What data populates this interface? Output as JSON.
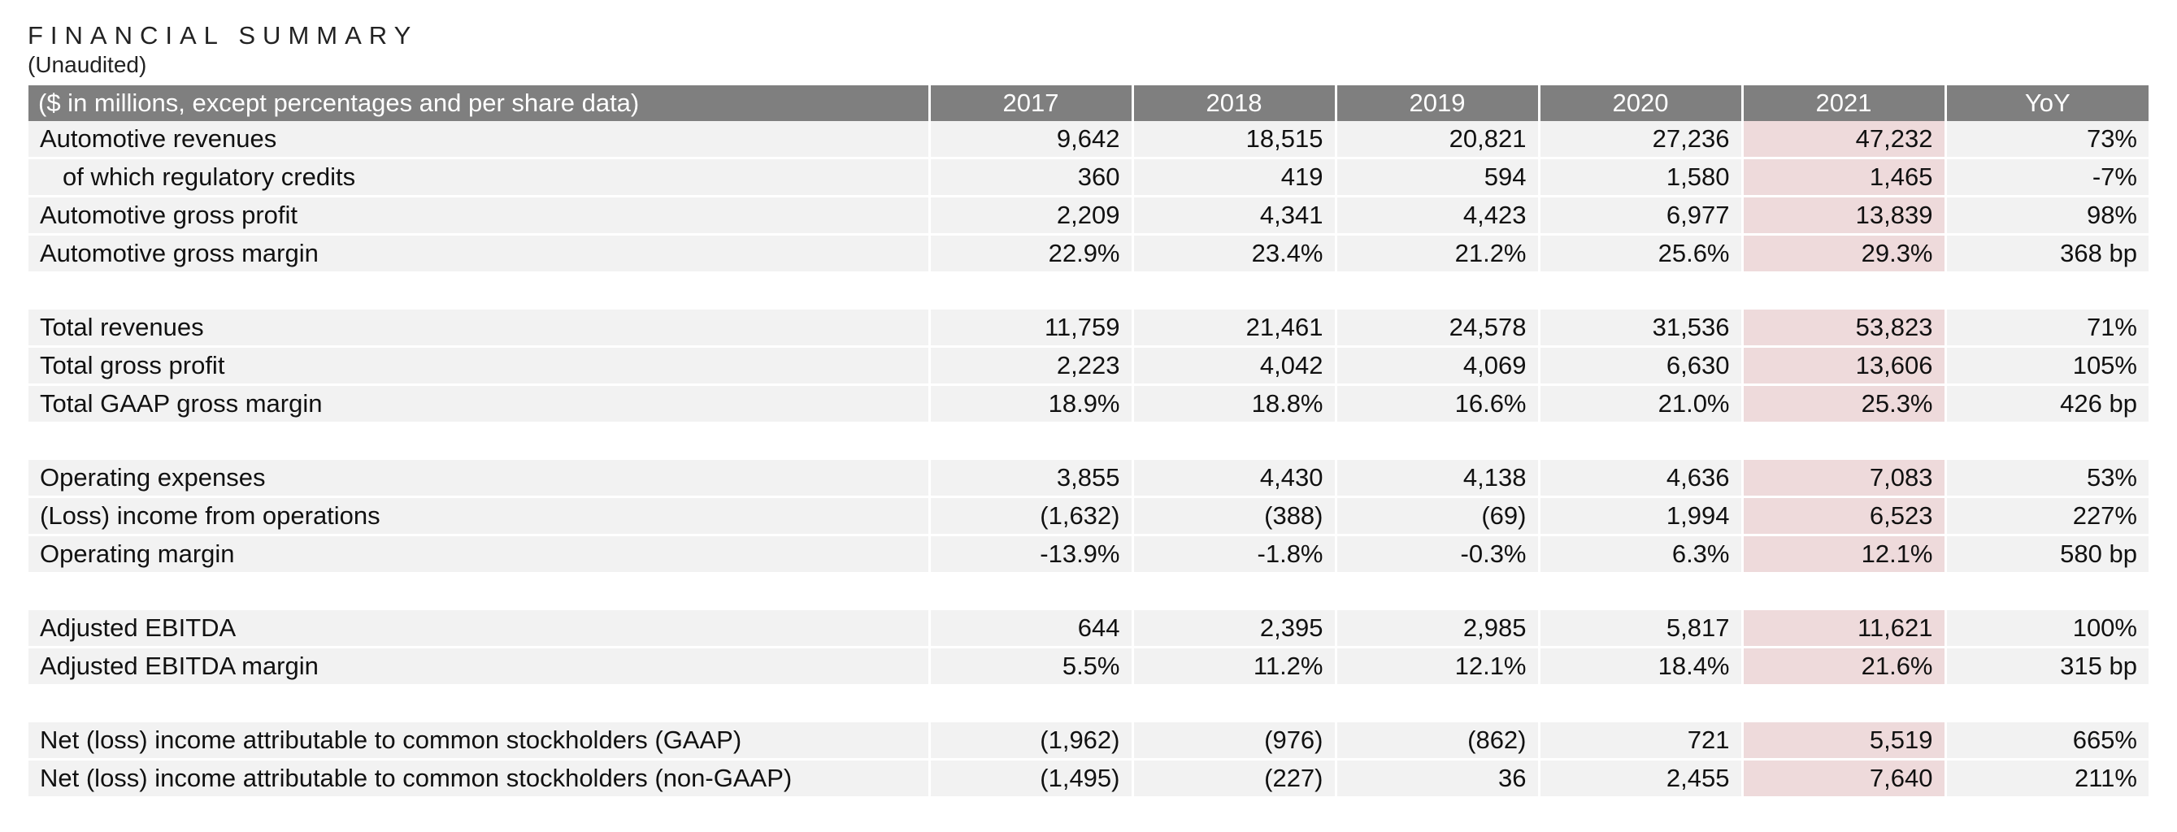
{
  "title": "FINANCIAL SUMMARY",
  "subtitle": "(Unaudited)",
  "table": {
    "headers": [
      "($ in millions, except percentages and per share data)",
      "2017",
      "2018",
      "2019",
      "2020",
      "2021",
      "YoY"
    ],
    "highlight_color": "#eedadb",
    "header_color": "#7f7f7f",
    "groups": [
      [
        {
          "label": "Automotive revenues",
          "values": [
            "9,642",
            "18,515",
            "20,821",
            "27,236",
            "47,232",
            "73%"
          ]
        },
        {
          "label": "of which regulatory credits",
          "indent": true,
          "values": [
            "360",
            "419",
            "594",
            "1,580",
            "1,465",
            "-7%"
          ]
        },
        {
          "label": "Automotive gross profit",
          "values": [
            "2,209",
            "4,341",
            "4,423",
            "6,977",
            "13,839",
            "98%"
          ]
        },
        {
          "label": "Automotive gross margin",
          "values": [
            "22.9%",
            "23.4%",
            "21.2%",
            "25.6%",
            "29.3%",
            "368 bp"
          ]
        }
      ],
      [
        {
          "label": "Total revenues",
          "values": [
            "11,759",
            "21,461",
            "24,578",
            "31,536",
            "53,823",
            "71%"
          ]
        },
        {
          "label": "Total gross profit",
          "values": [
            "2,223",
            "4,042",
            "4,069",
            "6,630",
            "13,606",
            "105%"
          ]
        },
        {
          "label": "Total GAAP gross margin",
          "values": [
            "18.9%",
            "18.8%",
            "16.6%",
            "21.0%",
            "25.3%",
            "426 bp"
          ]
        }
      ],
      [
        {
          "label": "Operating expenses",
          "values": [
            "3,855",
            "4,430",
            "4,138",
            "4,636",
            "7,083",
            "53%"
          ]
        },
        {
          "label": "(Loss) income from operations",
          "values": [
            "(1,632)",
            "(388)",
            "(69)",
            "1,994",
            "6,523",
            "227%"
          ]
        },
        {
          "label": "Operating margin",
          "values": [
            "-13.9%",
            "-1.8%",
            "-0.3%",
            "6.3%",
            "12.1%",
            "580 bp"
          ]
        }
      ],
      [
        {
          "label": "Adjusted EBITDA",
          "values": [
            "644",
            "2,395",
            "2,985",
            "5,817",
            "11,621",
            "100%"
          ]
        },
        {
          "label": "Adjusted EBITDA margin",
          "values": [
            "5.5%",
            "11.2%",
            "12.1%",
            "18.4%",
            "21.6%",
            "315 bp"
          ]
        }
      ],
      [
        {
          "label": "Net (loss) income attributable to common stockholders (GAAP)",
          "values": [
            "(1,962)",
            "(976)",
            "(862)",
            "721",
            "5,519",
            "665%"
          ]
        },
        {
          "label": "Net (loss) income attributable to common stockholders (non-GAAP)",
          "values": [
            "(1,495)",
            "(227)",
            "36",
            "2,455",
            "7,640",
            "211%"
          ]
        }
      ]
    ]
  }
}
